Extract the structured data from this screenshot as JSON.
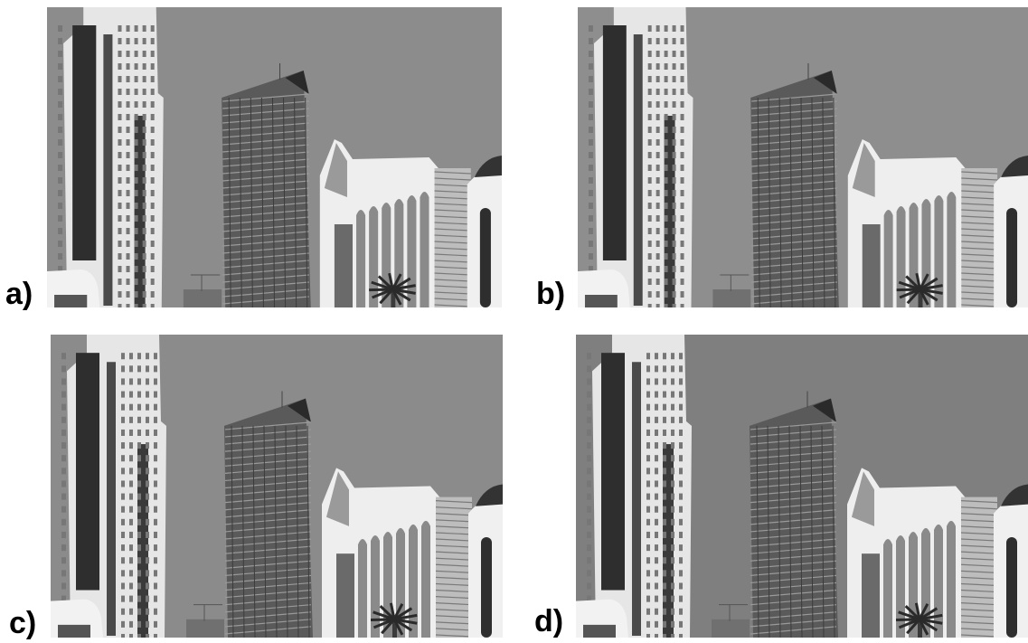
{
  "panels": [
    {
      "id": "a",
      "label": "a)"
    },
    {
      "id": "b",
      "label": "b)"
    },
    {
      "id": "c",
      "label": "c)"
    },
    {
      "id": "d",
      "label": "d)"
    }
  ]
}
